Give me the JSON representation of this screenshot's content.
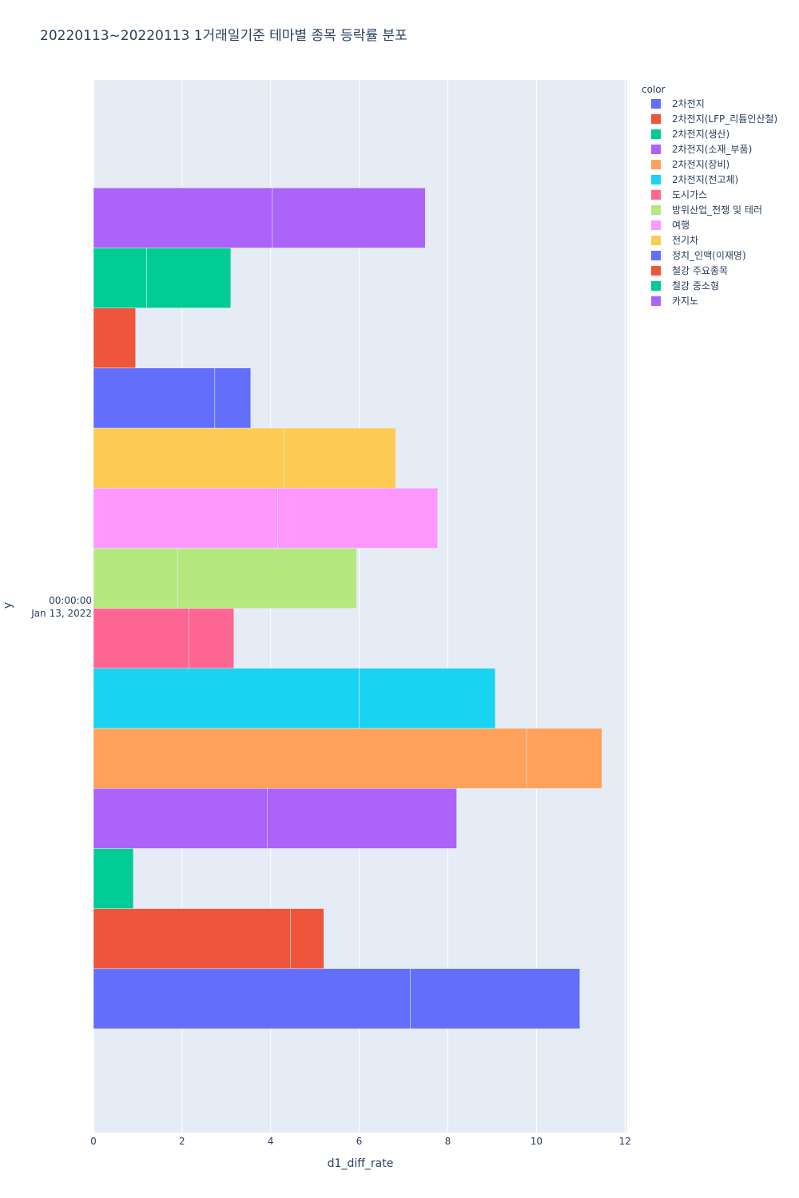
{
  "chart_data": {
    "type": "bar",
    "orientation": "horizontal",
    "barmode": "stack",
    "title": "20220113~20220113 1거래일기준 테마별 종목 등락률 분포",
    "xlabel": "d1_diff_rate",
    "ylabel": "y",
    "xlim": [
      0,
      12.05
    ],
    "x_ticks": [
      0,
      2,
      4,
      6,
      8,
      10,
      12
    ],
    "y_tick_label_line1": "00:00:00",
    "y_tick_label_line2": "Jan 13, 2022",
    "legend_title": "color",
    "legend_position": "right",
    "series": [
      {
        "name": "2차전지",
        "color": "#636efa",
        "segments": [
          7.15,
          3.83
        ]
      },
      {
        "name": "2차전지(LFP_리튬인산철)",
        "color": "#EF553B",
        "segments": [
          4.45,
          0.75
        ]
      },
      {
        "name": "2차전지(생산)",
        "color": "#00cc96",
        "segments": [
          0.9
        ]
      },
      {
        "name": "2차전지(소재_부품)",
        "color": "#ab63fa",
        "segments": [
          3.92,
          4.28
        ]
      },
      {
        "name": "2차전지(장비)",
        "color": "#FFA15A",
        "segments": [
          9.78,
          1.7
        ]
      },
      {
        "name": "2차전지(전고체)",
        "color": "#19d3f3",
        "segments": [
          6.0,
          3.07
        ]
      },
      {
        "name": "도시가스",
        "color": "#FF6692",
        "segments": [
          2.15,
          1.02
        ]
      },
      {
        "name": "방위산업_전쟁 및 테러",
        "color": "#B6E880",
        "segments": [
          1.9,
          4.04
        ]
      },
      {
        "name": "여행",
        "color": "#FF97FF",
        "segments": [
          4.16,
          3.61
        ]
      },
      {
        "name": "전기차",
        "color": "#FECB52",
        "segments": [
          4.3,
          2.52
        ]
      },
      {
        "name": "정치_인맥(이재명)",
        "color": "#636efa",
        "segments": [
          2.74,
          0.81
        ]
      },
      {
        "name": "철강 주요종목",
        "color": "#EF553B",
        "segments": [
          0.95
        ]
      },
      {
        "name": "철강 중소형",
        "color": "#00cc96",
        "segments": [
          1.2,
          1.9
        ]
      },
      {
        "name": "카지노",
        "color": "#ab63fa",
        "segments": [
          4.04,
          3.45
        ]
      }
    ]
  }
}
